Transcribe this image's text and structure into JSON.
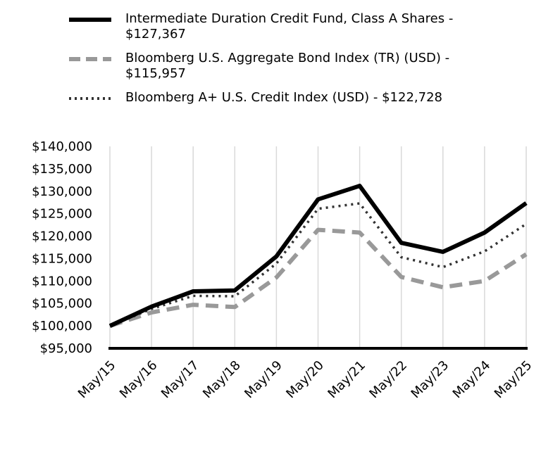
{
  "chart_data": {
    "type": "line",
    "categories": [
      "May/15",
      "May/16",
      "May/17",
      "May/18",
      "May/19",
      "May/20",
      "May/21",
      "May/22",
      "May/23",
      "May/24",
      "May/25"
    ],
    "ylim": [
      95000,
      140000
    ],
    "y_ticks": [
      95000,
      100000,
      105000,
      110000,
      115000,
      120000,
      125000,
      130000,
      135000,
      140000
    ],
    "y_tick_labels": [
      "$95,000",
      "$100,000",
      "$105,000",
      "$110,000",
      "$115,000",
      "$120,000",
      "$125,000",
      "$130,000",
      "$135,000",
      "$140,000"
    ],
    "grid": "vertical",
    "legend_position": "top",
    "series": [
      {
        "name": "Intermediate Duration Credit Fund, Class A Shares - $127,367",
        "color": "#000000",
        "style": "solid",
        "values": [
          100000,
          104300,
          107700,
          107900,
          115500,
          128200,
          131200,
          118500,
          116500,
          120800,
          127367
        ]
      },
      {
        "name": "Bloomberg U.S. Aggregate Bond Index (TR) (USD) - $115,957",
        "color": "#999999",
        "style": "dashed",
        "values": [
          100000,
          103000,
          104700,
          104200,
          110800,
          121400,
          120800,
          110900,
          108600,
          110000,
          115957
        ]
      },
      {
        "name": "Bloomberg A+ U.S. Credit Index (USD) - $122,728",
        "color": "#333333",
        "style": "dotted",
        "values": [
          100000,
          103800,
          106700,
          106600,
          113900,
          126100,
          127300,
          115300,
          113100,
          116600,
          122728
        ]
      }
    ]
  }
}
